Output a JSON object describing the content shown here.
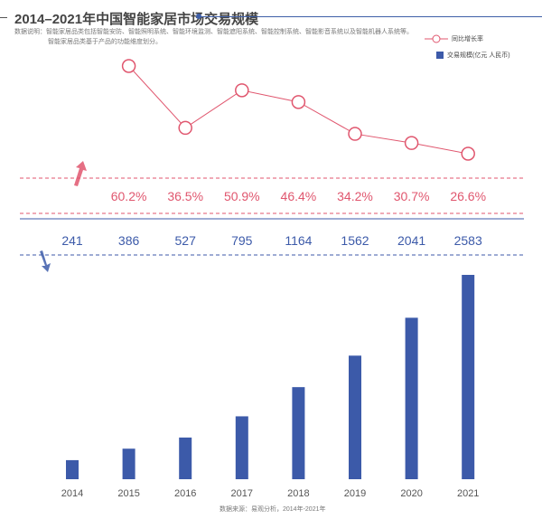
{
  "title": "2014–2021年中国智能家居市场交易规模",
  "note_line1": "数据说明：智能家居品类包括智能安防、智能照明系统、智能环境监测、智能遮阳系统、智能控制系统、智能影音系统以及智能机器人系统等。",
  "note_line2": "智能家居品类基于产品的功能维度划分。",
  "source": "数据来源：易观分析，2014年-2021年",
  "colors": {
    "line": "#e0566e",
    "bar": "#3c5aa9",
    "label_pink": "#e0566e",
    "label_blue": "#3c5aa9"
  },
  "chart_data": {
    "type": "bar+line",
    "title": "2014–2021年中国智能家居市场交易规模",
    "categories": [
      "2014",
      "2015",
      "2016",
      "2017",
      "2018",
      "2019",
      "2020",
      "2021"
    ],
    "series": [
      {
        "name": "交易规模(亿元 人民币)",
        "type": "bar",
        "values": [
          241,
          386,
          527,
          795,
          1164,
          1562,
          2041,
          2583
        ],
        "labels": [
          "241",
          "386",
          "527",
          "795",
          "1164",
          "1562",
          "2041",
          "2583"
        ]
      },
      {
        "name": "同比增长率",
        "type": "line",
        "values": [
          null,
          60.2,
          36.5,
          50.9,
          46.4,
          34.2,
          30.7,
          26.6
        ],
        "labels": [
          "",
          "60.2%",
          "36.5%",
          "50.9%",
          "46.4%",
          "34.2%",
          "30.7%",
          "26.6%"
        ]
      }
    ],
    "legend": "top-right",
    "grid": false
  }
}
